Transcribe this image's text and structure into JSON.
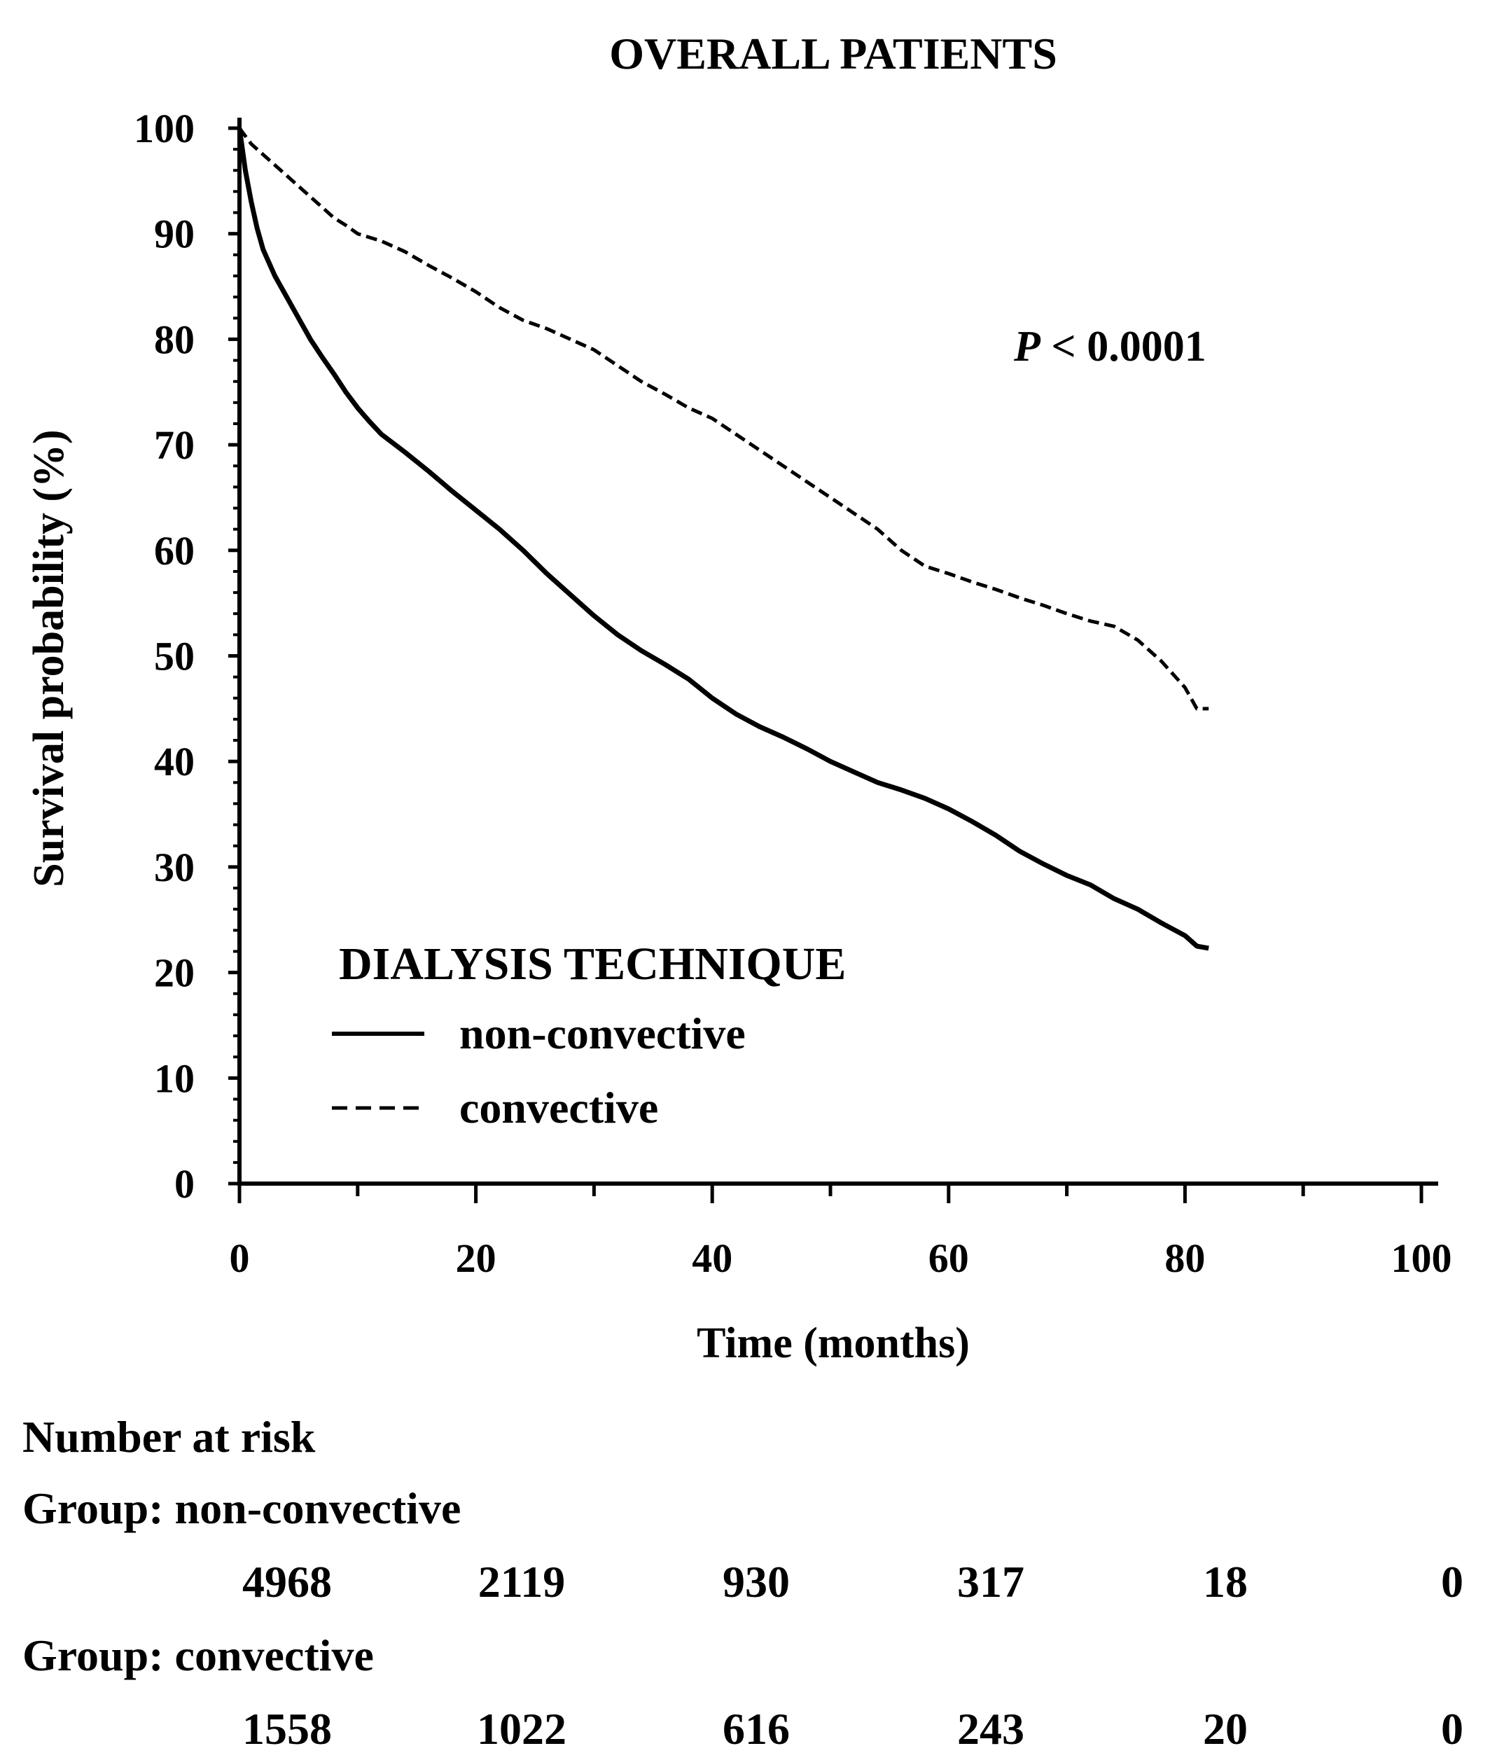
{
  "chart_data": {
    "type": "line",
    "title": "OVERALL PATIENTS",
    "xlabel": "Time (months)",
    "ylabel": "Survival probability (%)",
    "xlim": [
      0,
      100
    ],
    "ylim": [
      0,
      100
    ],
    "x_ticks": [
      "0",
      "20",
      "40",
      "60",
      "80",
      "100"
    ],
    "y_ticks": [
      "0",
      "10",
      "20",
      "30",
      "40",
      "50",
      "60",
      "70",
      "80",
      "90",
      "100"
    ],
    "annotation": {
      "italic": "P",
      "rest": " < 0.0001"
    },
    "legend": {
      "title": "DIALYSIS TECHNIQUE",
      "placement": "lower-left",
      "entries": [
        "non-convective",
        "convective"
      ]
    },
    "series": [
      {
        "name": "non-convective",
        "style": "solid",
        "points": [
          [
            0,
            100
          ],
          [
            0.5,
            96
          ],
          [
            1,
            93
          ],
          [
            1.5,
            90.5
          ],
          [
            2,
            88.5
          ],
          [
            3,
            86
          ],
          [
            4,
            84
          ],
          [
            5,
            82
          ],
          [
            6,
            80
          ],
          [
            7,
            78.3
          ],
          [
            8,
            76.7
          ],
          [
            9,
            75
          ],
          [
            10,
            73.5
          ],
          [
            11,
            72.2
          ],
          [
            12,
            71
          ],
          [
            14,
            69.3
          ],
          [
            16,
            67.5
          ],
          [
            18,
            65.6
          ],
          [
            20,
            63.8
          ],
          [
            22,
            62
          ],
          [
            24,
            60
          ],
          [
            26,
            57.8
          ],
          [
            28,
            55.8
          ],
          [
            30,
            53.8
          ],
          [
            32,
            52
          ],
          [
            34,
            50.5
          ],
          [
            36,
            49.2
          ],
          [
            38,
            47.8
          ],
          [
            40,
            46
          ],
          [
            42,
            44.5
          ],
          [
            44,
            43.3
          ],
          [
            46,
            42.3
          ],
          [
            48,
            41.2
          ],
          [
            50,
            40
          ],
          [
            52,
            39
          ],
          [
            54,
            38
          ],
          [
            56,
            37.3
          ],
          [
            58,
            36.5
          ],
          [
            60,
            35.5
          ],
          [
            62,
            34.3
          ],
          [
            64,
            33
          ],
          [
            66,
            31.5
          ],
          [
            68,
            30.3
          ],
          [
            70,
            29.2
          ],
          [
            72,
            28.3
          ],
          [
            74,
            27
          ],
          [
            76,
            26
          ],
          [
            78,
            24.7
          ],
          [
            80,
            23.5
          ],
          [
            81,
            22.5
          ],
          [
            82,
            22.3
          ]
        ]
      },
      {
        "name": "convective",
        "style": "dashed",
        "points": [
          [
            0,
            100
          ],
          [
            1,
            98.5
          ],
          [
            2,
            97.5
          ],
          [
            3,
            96.5
          ],
          [
            4,
            95.5
          ],
          [
            5,
            94.5
          ],
          [
            6,
            93.5
          ],
          [
            7,
            92.5
          ],
          [
            8,
            91.5
          ],
          [
            9,
            90.8
          ],
          [
            10,
            90
          ],
          [
            12,
            89.3
          ],
          [
            14,
            88.3
          ],
          [
            16,
            87
          ],
          [
            18,
            85.8
          ],
          [
            20,
            84.5
          ],
          [
            22,
            83
          ],
          [
            24,
            81.8
          ],
          [
            26,
            81
          ],
          [
            28,
            80
          ],
          [
            30,
            79
          ],
          [
            32,
            77.5
          ],
          [
            34,
            76
          ],
          [
            36,
            74.8
          ],
          [
            38,
            73.5
          ],
          [
            40,
            72.5
          ],
          [
            42,
            71
          ],
          [
            44,
            69.5
          ],
          [
            46,
            68
          ],
          [
            48,
            66.5
          ],
          [
            50,
            65
          ],
          [
            52,
            63.5
          ],
          [
            54,
            62
          ],
          [
            56,
            60
          ],
          [
            58,
            58.5
          ],
          [
            60,
            57.8
          ],
          [
            62,
            57
          ],
          [
            64,
            56.3
          ],
          [
            66,
            55.5
          ],
          [
            68,
            54.8
          ],
          [
            70,
            54
          ],
          [
            72,
            53.3
          ],
          [
            74,
            52.8
          ],
          [
            76,
            51.5
          ],
          [
            78,
            49.5
          ],
          [
            80,
            47
          ],
          [
            81,
            45
          ],
          [
            82,
            45
          ]
        ]
      }
    ],
    "risk_table": {
      "heading": "Number at risk",
      "groups": [
        {
          "label": "Group: non-convective",
          "values": [
            "4968",
            "2119",
            "930",
            "317",
            "18",
            "0"
          ]
        },
        {
          "label": "Group: convective",
          "values": [
            "1558",
            "1022",
            "616",
            "243",
            "20",
            "0"
          ]
        }
      ]
    }
  }
}
